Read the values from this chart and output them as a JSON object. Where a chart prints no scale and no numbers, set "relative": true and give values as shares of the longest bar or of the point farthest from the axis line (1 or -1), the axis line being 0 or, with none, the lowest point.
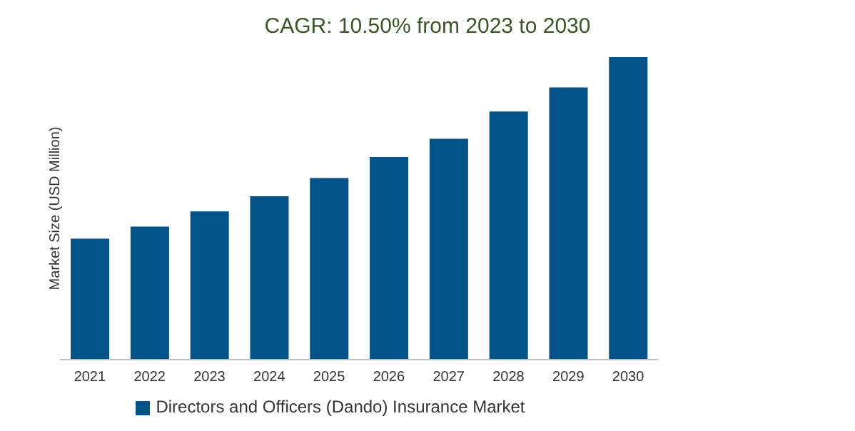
{
  "chart_data": {
    "type": "bar",
    "title": "CAGR: 10.50% from 2023 to 2030",
    "ylabel": "Market Size (USD Million)",
    "relative": true,
    "categories": [
      "2021",
      "2022",
      "2023",
      "2024",
      "2025",
      "2026",
      "2027",
      "2028",
      "2029",
      "2030"
    ],
    "series": [
      {
        "name": "Directors and Officers (Dando) Insurance Market",
        "color": "#02538a",
        "values": [
          0.4,
          0.44,
          0.49,
          0.54,
          0.6,
          0.67,
          0.73,
          0.82,
          0.9,
          1
        ]
      }
    ],
    "legend": "bottom",
    "grid": false
  }
}
